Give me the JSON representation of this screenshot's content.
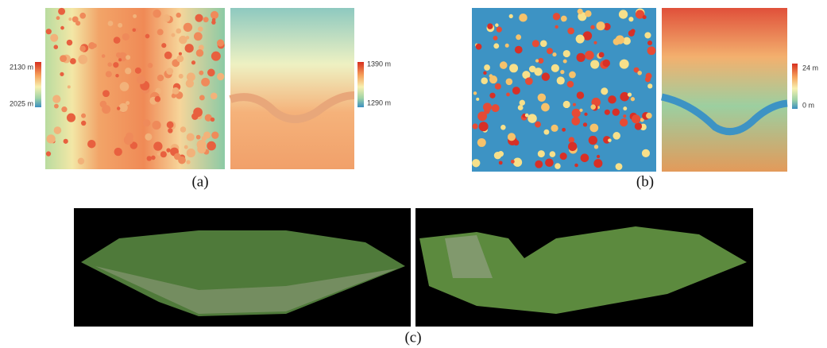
{
  "panels": [
    {
      "label": "(a)",
      "scales": [
        {
          "max": "2130 m",
          "min": "2025 m"
        },
        {
          "max": "1390 m",
          "min": "1290 m"
        }
      ]
    },
    {
      "label": "(b)",
      "scales": [
        {
          "max": "24 m",
          "min": "0 m"
        }
      ]
    },
    {
      "label": "(c)"
    }
  ]
}
